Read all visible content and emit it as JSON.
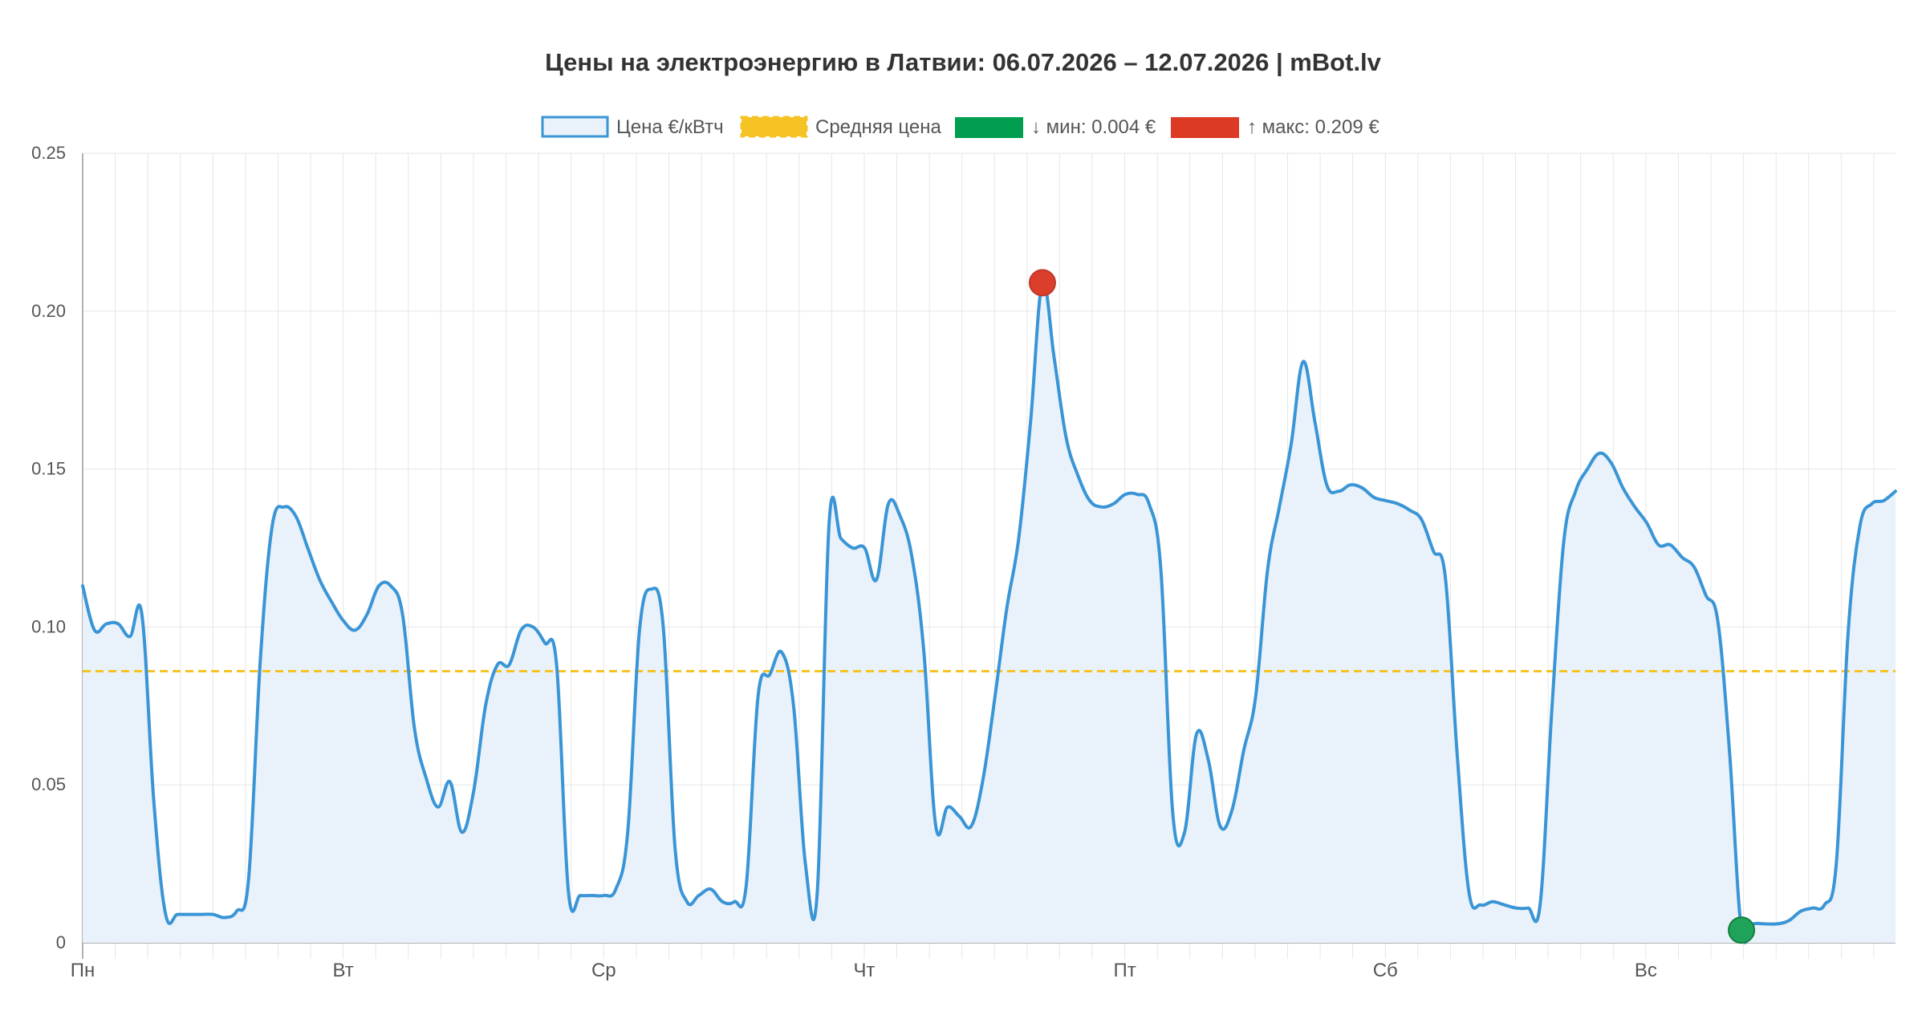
{
  "chart_data": {
    "type": "area",
    "title": "Цены на электроэнергию в Латвии: 06.07.2026 – 12.07.2026 | mBot.lv",
    "ylim": [
      0,
      0.25
    ],
    "y_ticks": [
      "0",
      "0.05",
      "0.10",
      "0.15",
      "0.20",
      "0.25"
    ],
    "y_tick_values": [
      0,
      0.05,
      0.1,
      0.15,
      0.2,
      0.25
    ],
    "x_day_labels": [
      "Пн",
      "Вт",
      "Ср",
      "Чт",
      "Пт",
      "Сб",
      "Вс"
    ],
    "grid": true,
    "legend_position": "top-center",
    "legend": {
      "price": "Цена €/кВтч",
      "average": "Средняя цена",
      "min": "↓ мин: 0.004 €",
      "max": "↑ макс: 0.209 €"
    },
    "series": [
      {
        "name": "Цена €/кВтч",
        "color": "#3a95d6",
        "fill": "#e9f2fa",
        "values": [
          0.113,
          0.099,
          0.101,
          0.101,
          0.097,
          0.104,
          0.045,
          0.009,
          0.009,
          0.009,
          0.009,
          0.009,
          0.008,
          0.01,
          0.02,
          0.09,
          0.132,
          0.138,
          0.135,
          0.125,
          0.115,
          0.108,
          0.102,
          0.099,
          0.104,
          0.113,
          0.113,
          0.104,
          0.068,
          0.052,
          0.043,
          0.051,
          0.035,
          0.048,
          0.075,
          0.088,
          0.088,
          0.099,
          0.1,
          0.095,
          0.088,
          0.016,
          0.015,
          0.015,
          0.015,
          0.017,
          0.035,
          0.099,
          0.112,
          0.1,
          0.03,
          0.013,
          0.015,
          0.017,
          0.013,
          0.013,
          0.018,
          0.078,
          0.085,
          0.092,
          0.075,
          0.025,
          0.016,
          0.133,
          0.128,
          0.125,
          0.125,
          0.115,
          0.139,
          0.135,
          0.122,
          0.092,
          0.037,
          0.043,
          0.04,
          0.037,
          0.052,
          0.078,
          0.106,
          0.128,
          0.165,
          0.209,
          0.185,
          0.16,
          0.148,
          0.14,
          0.138,
          0.139,
          0.142,
          0.142,
          0.139,
          0.118,
          0.041,
          0.035,
          0.066,
          0.058,
          0.037,
          0.042,
          0.061,
          0.078,
          0.118,
          0.138,
          0.158,
          0.184,
          0.165,
          0.145,
          0.143,
          0.145,
          0.144,
          0.141,
          0.14,
          0.139,
          0.137,
          0.134,
          0.124,
          0.116,
          0.06,
          0.016,
          0.012,
          0.013,
          0.012,
          0.011,
          0.011,
          0.012,
          0.074,
          0.127,
          0.143,
          0.15,
          0.155,
          0.152,
          0.144,
          0.138,
          0.133,
          0.126,
          0.126,
          0.122,
          0.119,
          0.11,
          0.102,
          0.06,
          0.004,
          0.006,
          0.006,
          0.006,
          0.007,
          0.01,
          0.011,
          0.012,
          0.025,
          0.098,
          0.132,
          0.139,
          0.14,
          0.143
        ]
      },
      {
        "name": "Средняя цена",
        "color": "#f6c324",
        "value": 0.086
      }
    ],
    "markers": {
      "max": {
        "index": 81,
        "value": 0.209,
        "color": "#db3e2b"
      },
      "min": {
        "index": 140,
        "value": 0.004,
        "color": "#1fa35b"
      }
    }
  }
}
